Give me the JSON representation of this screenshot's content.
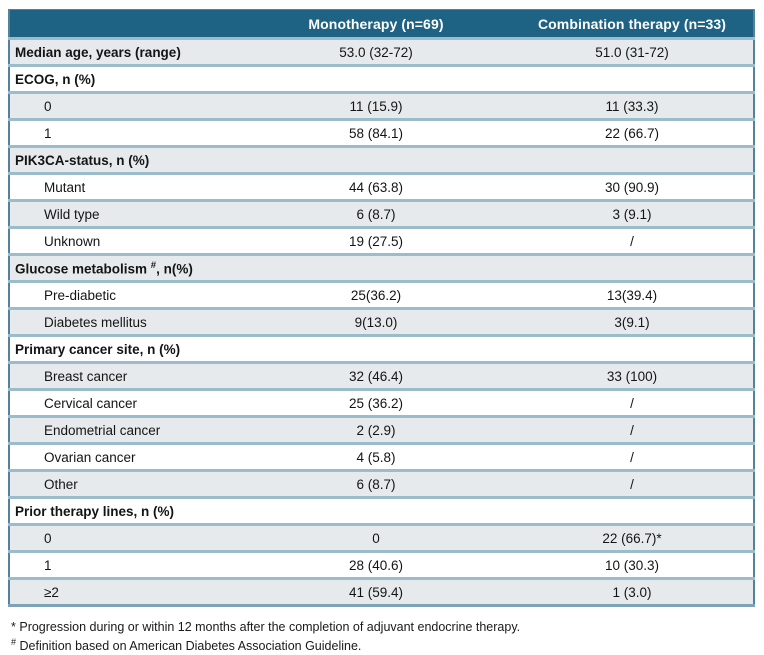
{
  "table": {
    "columns": [
      "",
      "Monotherapy (n=69)",
      "Combination therapy (n=33)"
    ],
    "rows": [
      {
        "label": "Median age, years (range)",
        "sup": "",
        "post": "",
        "mono": "53.0 (32-72)",
        "combo": "51.0 (31-72)",
        "bold": true,
        "indent": false,
        "shade": "gray"
      },
      {
        "label": "ECOG, n (%)",
        "sup": "",
        "post": "",
        "mono": "",
        "combo": "",
        "bold": true,
        "indent": false,
        "shade": "white"
      },
      {
        "label": "0",
        "sup": "",
        "post": "",
        "mono": "11 (15.9)",
        "combo": "11 (33.3)",
        "bold": false,
        "indent": true,
        "shade": "gray"
      },
      {
        "label": "1",
        "sup": "",
        "post": "",
        "mono": "58 (84.1)",
        "combo": "22 (66.7)",
        "bold": false,
        "indent": true,
        "shade": "white"
      },
      {
        "label": "PIK3CA-status, n (%)",
        "sup": "",
        "post": "",
        "mono": "",
        "combo": "",
        "bold": true,
        "indent": false,
        "shade": "gray"
      },
      {
        "label": "Mutant",
        "sup": "",
        "post": "",
        "mono": "44 (63.8)",
        "combo": "30 (90.9)",
        "bold": false,
        "indent": true,
        "shade": "white"
      },
      {
        "label": "Wild type",
        "sup": "",
        "post": "",
        "mono": "6 (8.7)",
        "combo": "3 (9.1)",
        "bold": false,
        "indent": true,
        "shade": "gray"
      },
      {
        "label": "Unknown",
        "sup": "",
        "post": "",
        "mono": "19 (27.5)",
        "combo": "/",
        "bold": false,
        "indent": true,
        "shade": "white"
      },
      {
        "label": "Glucose metabolism ",
        "sup": "#",
        "post": ", n(%)",
        "mono": "",
        "combo": "",
        "bold": true,
        "indent": false,
        "shade": "gray"
      },
      {
        "label": "Pre-diabetic",
        "sup": "",
        "post": "",
        "mono": "25(36.2)",
        "combo": "13(39.4)",
        "bold": false,
        "indent": true,
        "shade": "white"
      },
      {
        "label": "Diabetes mellitus",
        "sup": "",
        "post": "",
        "mono": "9(13.0)",
        "combo": "3(9.1)",
        "bold": false,
        "indent": true,
        "shade": "gray"
      },
      {
        "label": "Primary cancer site, n (%)",
        "sup": "",
        "post": "",
        "mono": "",
        "combo": "",
        "bold": true,
        "indent": false,
        "shade": "white"
      },
      {
        "label": "Breast cancer",
        "sup": "",
        "post": "",
        "mono": "32 (46.4)",
        "combo": "33 (100)",
        "bold": false,
        "indent": true,
        "shade": "gray"
      },
      {
        "label": "Cervical cancer",
        "sup": "",
        "post": "",
        "mono": "25 (36.2)",
        "combo": "/",
        "bold": false,
        "indent": true,
        "shade": "white"
      },
      {
        "label": "Endometrial cancer",
        "sup": "",
        "post": "",
        "mono": "2 (2.9)",
        "combo": "/",
        "bold": false,
        "indent": true,
        "shade": "gray"
      },
      {
        "label": "Ovarian cancer",
        "sup": "",
        "post": "",
        "mono": "4 (5.8)",
        "combo": "/",
        "bold": false,
        "indent": true,
        "shade": "white"
      },
      {
        "label": "Other",
        "sup": "",
        "post": "",
        "mono": "6 (8.7)",
        "combo": "/",
        "bold": false,
        "indent": true,
        "shade": "gray"
      },
      {
        "label": "Prior therapy lines, n (%)",
        "sup": "",
        "post": "",
        "mono": "",
        "combo": "",
        "bold": true,
        "indent": false,
        "shade": "white"
      },
      {
        "label": "0",
        "sup": "",
        "post": "",
        "mono": "0",
        "combo": "22 (66.7)*",
        "bold": false,
        "indent": true,
        "shade": "gray"
      },
      {
        "label": "1",
        "sup": "",
        "post": "",
        "mono": "28 (40.6)",
        "combo": "10 (30.3)",
        "bold": false,
        "indent": true,
        "shade": "white"
      },
      {
        "label": "≥2",
        "sup": "",
        "post": "",
        "mono": "41 (59.4)",
        "combo": "1 (3.0)",
        "bold": false,
        "indent": true,
        "shade": "gray"
      }
    ]
  },
  "footnotes": [
    {
      "marker": "*",
      "text": "Progression during or within 12 months after the completion of adjuvant endocrine therapy."
    },
    {
      "marker": "#",
      "text": "Definition based on  American Diabetes Association Guideline."
    }
  ],
  "colors": {
    "header_bg": "#1E6384",
    "header_text": "#FFFFFF",
    "row_alt_bg": "#E7EAEC",
    "row_bg": "#FFFFFF",
    "divider": "#9BBCCB",
    "outer_border": "#54819B"
  }
}
